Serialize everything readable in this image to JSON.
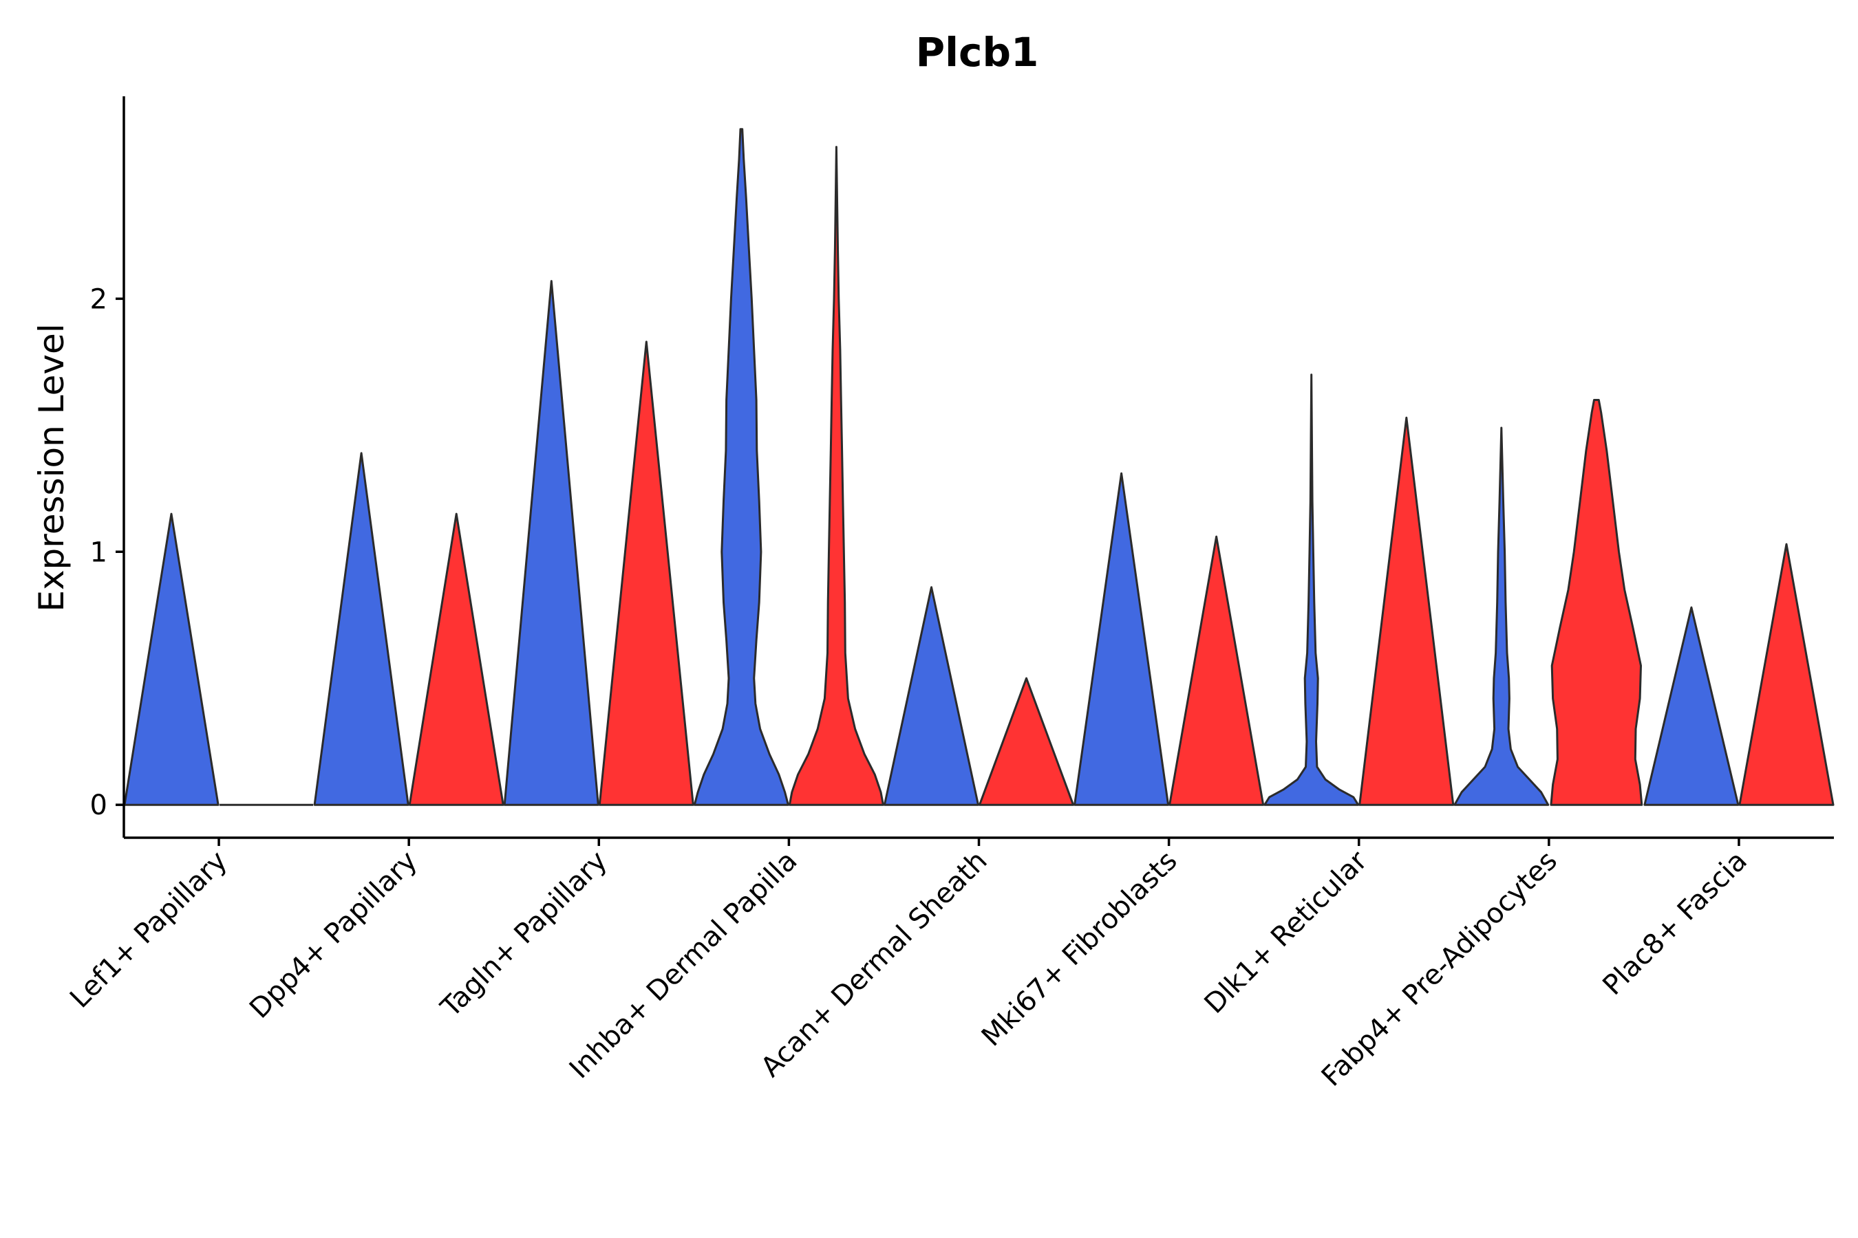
{
  "chart_data": {
    "type": "violin",
    "title": "Plcb1",
    "ylabel": "Expression Level",
    "xlabel": "",
    "ylim": [
      -0.13,
      2.8
    ],
    "yticks": [
      0,
      1,
      2
    ],
    "legend": "none",
    "grid": false,
    "colors": {
      "group_a": "#4169E1",
      "group_b": "#FF3333",
      "outline": "#2b2b2b"
    },
    "categories": [
      "Lef1+ Papillary",
      "Dpp4+ Papillary",
      "Tagln+ Papillary",
      "Inhba+ Dermal Papilla",
      "Acan+ Dermal Sheath",
      "Mki67+ Fibroblasts",
      "Dlk1+ Reticular",
      "Fabp4+ Pre-Adipocytes",
      "Plac8+ Fascia"
    ],
    "violins": [
      {
        "category": "Lef1+ Papillary",
        "group": "a",
        "max": 1.15,
        "profile": [
          [
            0,
            1
          ],
          [
            1.15,
            0
          ]
        ]
      },
      {
        "category": "Lef1+ Papillary",
        "group": "b",
        "max": 0.0,
        "profile": [
          [
            0,
            1
          ]
        ]
      },
      {
        "category": "Dpp4+ Papillary",
        "group": "a",
        "max": 1.39,
        "profile": [
          [
            0,
            1
          ],
          [
            1.39,
            0
          ]
        ]
      },
      {
        "category": "Dpp4+ Papillary",
        "group": "b",
        "max": 1.15,
        "profile": [
          [
            0,
            1
          ],
          [
            1.15,
            0
          ]
        ]
      },
      {
        "category": "Tagln+ Papillary",
        "group": "a",
        "max": 2.07,
        "profile": [
          [
            0,
            1
          ],
          [
            2.07,
            0
          ]
        ]
      },
      {
        "category": "Tagln+ Papillary",
        "group": "b",
        "max": 1.83,
        "profile": [
          [
            0,
            1
          ],
          [
            1.83,
            0
          ]
        ]
      },
      {
        "category": "Inhba+ Dermal Papilla",
        "group": "a",
        "max": 2.67,
        "profile": [
          [
            0,
            1
          ],
          [
            0.05,
            0.93
          ],
          [
            0.12,
            0.8
          ],
          [
            0.2,
            0.6
          ],
          [
            0.3,
            0.4
          ],
          [
            0.4,
            0.3
          ],
          [
            0.5,
            0.27
          ],
          [
            0.65,
            0.32
          ],
          [
            0.8,
            0.38
          ],
          [
            1.0,
            0.42
          ],
          [
            1.2,
            0.38
          ],
          [
            1.4,
            0.33
          ],
          [
            1.6,
            0.32
          ],
          [
            1.8,
            0.27
          ],
          [
            2.0,
            0.22
          ],
          [
            2.2,
            0.16
          ],
          [
            2.4,
            0.1
          ],
          [
            2.55,
            0.05
          ],
          [
            2.67,
            0.02
          ]
        ]
      },
      {
        "category": "Inhba+ Dermal Papilla",
        "group": "b",
        "max": 2.6,
        "profile": [
          [
            0,
            1
          ],
          [
            0.05,
            0.95
          ],
          [
            0.12,
            0.82
          ],
          [
            0.2,
            0.6
          ],
          [
            0.3,
            0.4
          ],
          [
            0.42,
            0.25
          ],
          [
            0.6,
            0.19
          ],
          [
            0.8,
            0.18
          ],
          [
            1.0,
            0.16
          ],
          [
            1.2,
            0.14
          ],
          [
            1.4,
            0.12
          ],
          [
            1.6,
            0.1
          ],
          [
            1.8,
            0.08
          ],
          [
            2.0,
            0.05
          ],
          [
            2.2,
            0.03
          ],
          [
            2.6,
            0.0
          ]
        ]
      },
      {
        "category": "Acan+ Dermal Sheath",
        "group": "a",
        "max": 0.86,
        "profile": [
          [
            0,
            1
          ],
          [
            0.86,
            0
          ]
        ]
      },
      {
        "category": "Acan+ Dermal Sheath",
        "group": "b",
        "max": 0.5,
        "profile": [
          [
            0,
            1
          ],
          [
            0.5,
            0
          ]
        ]
      },
      {
        "category": "Mki67+ Fibroblasts",
        "group": "a",
        "max": 1.31,
        "profile": [
          [
            0,
            1
          ],
          [
            1.31,
            0
          ]
        ]
      },
      {
        "category": "Mki67+ Fibroblasts",
        "group": "b",
        "max": 1.06,
        "profile": [
          [
            0,
            1
          ],
          [
            1.06,
            0
          ]
        ]
      },
      {
        "category": "Dlk1+ Reticular",
        "group": "a",
        "max": 1.7,
        "profile": [
          [
            0,
            1
          ],
          [
            0.03,
            0.9
          ],
          [
            0.06,
            0.6
          ],
          [
            0.1,
            0.3
          ],
          [
            0.15,
            0.12
          ],
          [
            0.25,
            0.1
          ],
          [
            0.4,
            0.13
          ],
          [
            0.5,
            0.14
          ],
          [
            0.6,
            0.09
          ],
          [
            0.8,
            0.06
          ],
          [
            1.0,
            0.04
          ],
          [
            1.2,
            0.02
          ],
          [
            1.7,
            0.0
          ]
        ]
      },
      {
        "category": "Dlk1+ Reticular",
        "group": "b",
        "max": 1.53,
        "profile": [
          [
            0,
            1
          ],
          [
            1.53,
            0
          ]
        ]
      },
      {
        "category": "Fabp4+ Pre-Adipocytes",
        "group": "a",
        "max": 1.49,
        "profile": [
          [
            0,
            1
          ],
          [
            0.05,
            0.85
          ],
          [
            0.1,
            0.6
          ],
          [
            0.15,
            0.35
          ],
          [
            0.22,
            0.2
          ],
          [
            0.3,
            0.15
          ],
          [
            0.42,
            0.17
          ],
          [
            0.5,
            0.16
          ],
          [
            0.6,
            0.12
          ],
          [
            0.8,
            0.09
          ],
          [
            1.0,
            0.07
          ],
          [
            1.2,
            0.04
          ],
          [
            1.49,
            0.0
          ]
        ]
      },
      {
        "category": "Fabp4+ Pre-Adipocytes",
        "group": "b",
        "max": 1.6,
        "profile": [
          [
            0,
            0.97
          ],
          [
            0.08,
            0.93
          ],
          [
            0.18,
            0.83
          ],
          [
            0.3,
            0.84
          ],
          [
            0.42,
            0.93
          ],
          [
            0.55,
            0.95
          ],
          [
            0.7,
            0.78
          ],
          [
            0.85,
            0.6
          ],
          [
            1.0,
            0.48
          ],
          [
            1.2,
            0.35
          ],
          [
            1.4,
            0.22
          ],
          [
            1.55,
            0.1
          ],
          [
            1.6,
            0.05
          ]
        ]
      },
      {
        "category": "Plac8+ Fascia",
        "group": "a",
        "max": 0.78,
        "profile": [
          [
            0,
            1
          ],
          [
            0.78,
            0
          ]
        ]
      },
      {
        "category": "Plac8+ Fascia",
        "group": "b",
        "max": 1.03,
        "profile": [
          [
            0,
            1
          ],
          [
            1.03,
            0
          ]
        ]
      }
    ]
  }
}
